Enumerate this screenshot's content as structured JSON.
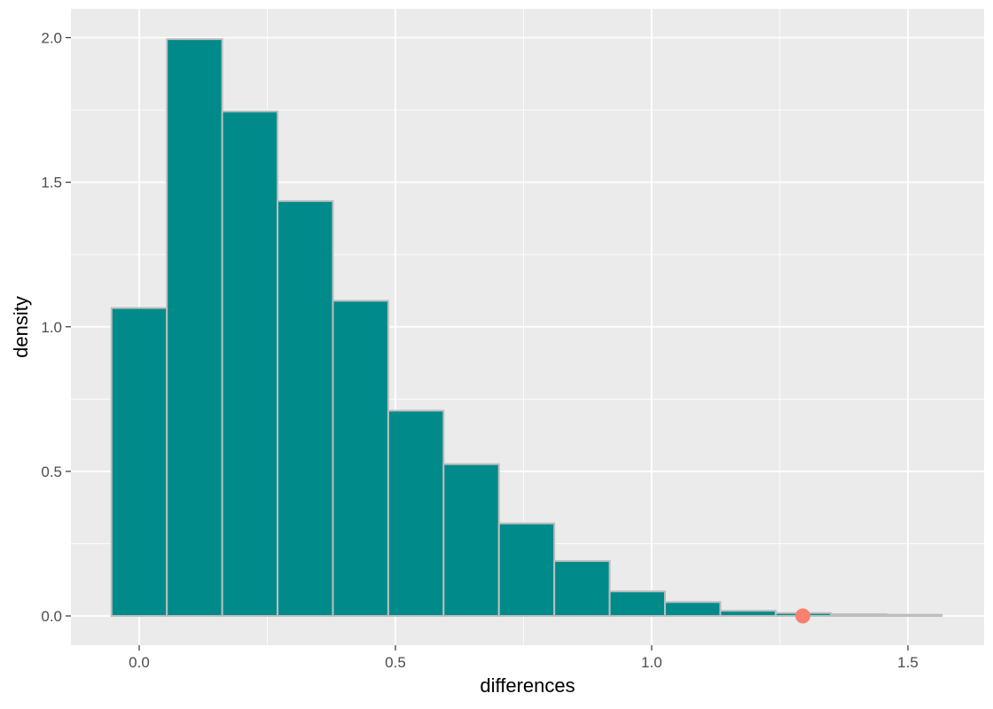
{
  "chart_data": {
    "type": "bar",
    "title": "",
    "xlabel": "differences",
    "ylabel": "density",
    "xlim": [
      -0.12,
      1.6
    ],
    "ylim": [
      -0.1,
      2.1
    ],
    "x_ticks": [
      0.0,
      0.5,
      1.0,
      1.5
    ],
    "x_tick_labels": [
      "0.0",
      "0.5",
      "1.0",
      "1.5"
    ],
    "y_ticks": [
      0.0,
      0.5,
      1.0,
      1.5,
      2.0
    ],
    "y_tick_labels": [
      "0.0",
      "0.5",
      "1.0",
      "1.5",
      "2.0"
    ],
    "grid": true,
    "bins": [
      {
        "x0": -0.054,
        "x1": 0.054,
        "density": 1.065
      },
      {
        "x0": 0.054,
        "x1": 0.162,
        "density": 1.995
      },
      {
        "x0": 0.162,
        "x1": 0.27,
        "density": 1.745
      },
      {
        "x0": 0.27,
        "x1": 0.378,
        "density": 1.435
      },
      {
        "x0": 0.378,
        "x1": 0.486,
        "density": 1.09
      },
      {
        "x0": 0.486,
        "x1": 0.594,
        "density": 0.71
      },
      {
        "x0": 0.594,
        "x1": 0.702,
        "density": 0.525
      },
      {
        "x0": 0.702,
        "x1": 0.81,
        "density": 0.32
      },
      {
        "x0": 0.81,
        "x1": 0.918,
        "density": 0.19
      },
      {
        "x0": 0.918,
        "x1": 1.026,
        "density": 0.085
      },
      {
        "x0": 1.026,
        "x1": 1.134,
        "density": 0.048
      },
      {
        "x0": 1.134,
        "x1": 1.242,
        "density": 0.018
      },
      {
        "x0": 1.242,
        "x1": 1.35,
        "density": 0.01
      },
      {
        "x0": 1.35,
        "x1": 1.458,
        "density": 0.006
      },
      {
        "x0": 1.458,
        "x1": 1.566,
        "density": 0.004
      }
    ],
    "observed_point": {
      "x": 1.295,
      "y": 0.0
    },
    "colors": {
      "bar_fill": "#008B8A",
      "bar_outline": "#BEBEBE",
      "point": "#FA8072",
      "panel_background": "#EBEBEB",
      "grid": "#FFFFFF"
    }
  }
}
